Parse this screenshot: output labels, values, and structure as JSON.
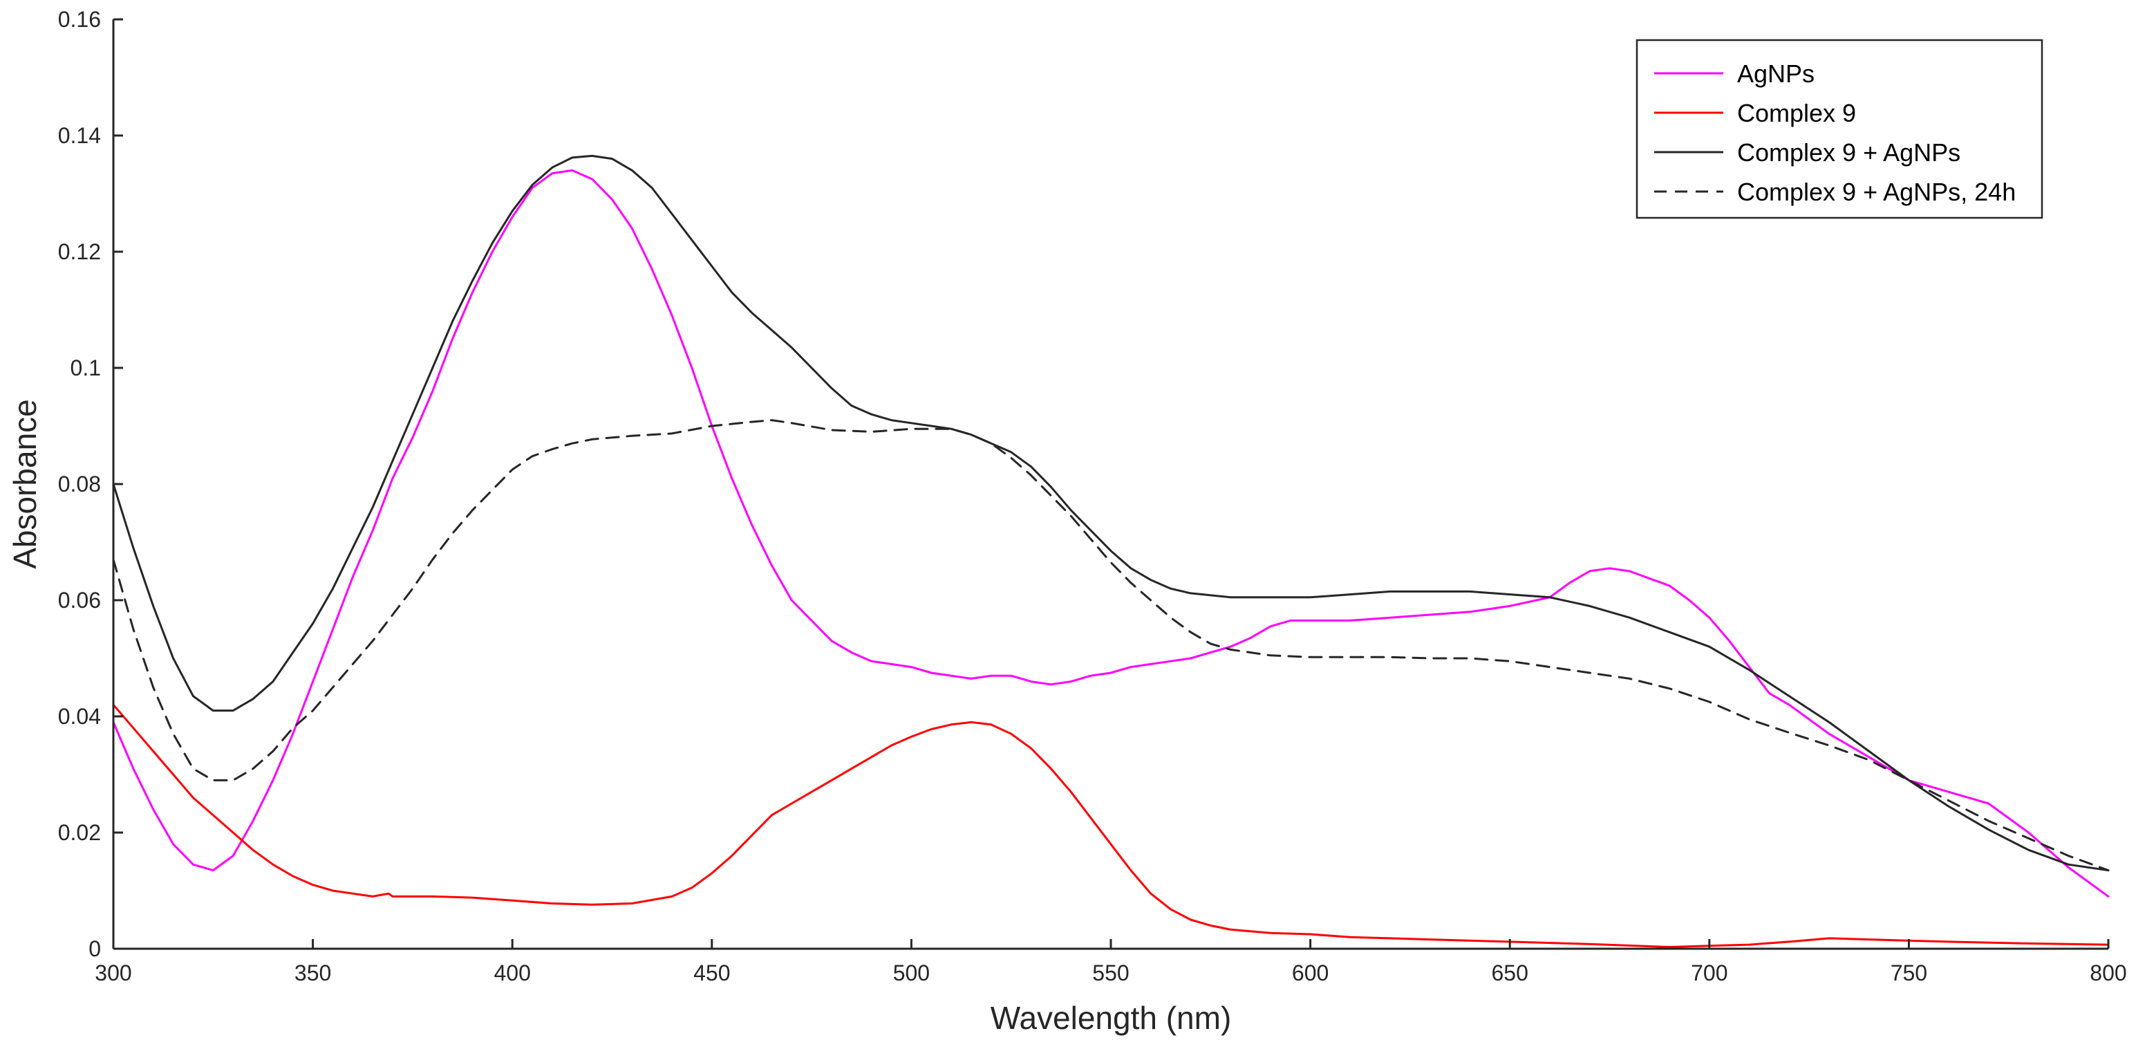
{
  "chart_data": {
    "type": "line",
    "title": "",
    "xlabel": "Wavelength (nm)",
    "ylabel": "Absorbance",
    "xlim": [
      300,
      800
    ],
    "ylim": [
      0,
      0.16
    ],
    "xticks": [
      300,
      350,
      400,
      450,
      500,
      550,
      600,
      650,
      700,
      750,
      800
    ],
    "xtick_labels": [
      "300",
      "350",
      "400",
      "450",
      "500",
      "550",
      "600",
      "650",
      "700",
      "750",
      "800"
    ],
    "yticks": [
      0,
      0.02,
      0.04,
      0.06,
      0.08,
      0.1,
      0.12,
      0.14,
      0.16
    ],
    "ytick_labels": [
      "0",
      "0.02",
      "0.04",
      "0.06",
      "0.08",
      "0.1",
      "0.12",
      "0.14",
      "0.16"
    ],
    "grid": false,
    "legend_position": "top-right",
    "series": [
      {
        "name": "AgNPs",
        "color": "#ff00ff",
        "style": "solid",
        "points": [
          [
            300,
            0.039
          ],
          [
            305,
            0.031
          ],
          [
            310,
            0.024
          ],
          [
            315,
            0.018
          ],
          [
            320,
            0.0145
          ],
          [
            325,
            0.0135
          ],
          [
            330,
            0.016
          ],
          [
            335,
            0.022
          ],
          [
            340,
            0.029
          ],
          [
            345,
            0.037
          ],
          [
            350,
            0.046
          ],
          [
            355,
            0.055
          ],
          [
            360,
            0.064
          ],
          [
            365,
            0.072
          ],
          [
            370,
            0.081
          ],
          [
            375,
            0.088
          ],
          [
            380,
            0.096
          ],
          [
            385,
            0.105
          ],
          [
            390,
            0.113
          ],
          [
            395,
            0.12
          ],
          [
            400,
            0.126
          ],
          [
            405,
            0.131
          ],
          [
            410,
            0.1335
          ],
          [
            415,
            0.134
          ],
          [
            420,
            0.1325
          ],
          [
            425,
            0.129
          ],
          [
            430,
            0.124
          ],
          [
            435,
            0.117
          ],
          [
            440,
            0.109
          ],
          [
            445,
            0.1
          ],
          [
            450,
            0.09
          ],
          [
            455,
            0.081
          ],
          [
            460,
            0.073
          ],
          [
            465,
            0.066
          ],
          [
            470,
            0.06
          ],
          [
            475,
            0.0565
          ],
          [
            480,
            0.053
          ],
          [
            485,
            0.051
          ],
          [
            490,
            0.0495
          ],
          [
            495,
            0.049
          ],
          [
            500,
            0.0485
          ],
          [
            505,
            0.0475
          ],
          [
            510,
            0.047
          ],
          [
            515,
            0.0465
          ],
          [
            520,
            0.047
          ],
          [
            525,
            0.047
          ],
          [
            530,
            0.046
          ],
          [
            535,
            0.0455
          ],
          [
            540,
            0.046
          ],
          [
            545,
            0.047
          ],
          [
            550,
            0.0475
          ],
          [
            555,
            0.0485
          ],
          [
            560,
            0.049
          ],
          [
            565,
            0.0495
          ],
          [
            570,
            0.05
          ],
          [
            575,
            0.051
          ],
          [
            580,
            0.052
          ],
          [
            585,
            0.0535
          ],
          [
            590,
            0.0555
          ],
          [
            595,
            0.0565
          ],
          [
            600,
            0.0565
          ],
          [
            610,
            0.0565
          ],
          [
            620,
            0.057
          ],
          [
            630,
            0.0575
          ],
          [
            640,
            0.058
          ],
          [
            650,
            0.059
          ],
          [
            660,
            0.0605
          ],
          [
            665,
            0.063
          ],
          [
            670,
            0.065
          ],
          [
            675,
            0.0655
          ],
          [
            680,
            0.065
          ],
          [
            690,
            0.0625
          ],
          [
            695,
            0.06
          ],
          [
            700,
            0.057
          ],
          [
            705,
            0.053
          ],
          [
            710,
            0.0485
          ],
          [
            715,
            0.044
          ],
          [
            720,
            0.042
          ],
          [
            730,
            0.037
          ],
          [
            740,
            0.033
          ],
          [
            750,
            0.029
          ],
          [
            760,
            0.027
          ],
          [
            765,
            0.026
          ],
          [
            770,
            0.025
          ],
          [
            780,
            0.02
          ],
          [
            790,
            0.014
          ],
          [
            800,
            0.009
          ]
        ]
      },
      {
        "name": "Complex 9",
        "color": "#ff0000",
        "style": "solid",
        "points": [
          [
            300,
            0.042
          ],
          [
            305,
            0.038
          ],
          [
            310,
            0.034
          ],
          [
            315,
            0.03
          ],
          [
            320,
            0.026
          ],
          [
            325,
            0.023
          ],
          [
            330,
            0.02
          ],
          [
            335,
            0.017
          ],
          [
            340,
            0.0145
          ],
          [
            345,
            0.0125
          ],
          [
            350,
            0.011
          ],
          [
            355,
            0.01
          ],
          [
            360,
            0.0095
          ],
          [
            365,
            0.009
          ],
          [
            369,
            0.0095
          ],
          [
            370,
            0.009
          ],
          [
            380,
            0.009
          ],
          [
            390,
            0.0088
          ],
          [
            400,
            0.0083
          ],
          [
            410,
            0.0078
          ],
          [
            420,
            0.0076
          ],
          [
            430,
            0.0078
          ],
          [
            440,
            0.009
          ],
          [
            445,
            0.0105
          ],
          [
            450,
            0.013
          ],
          [
            455,
            0.016
          ],
          [
            460,
            0.0195
          ],
          [
            465,
            0.023
          ],
          [
            470,
            0.025
          ],
          [
            475,
            0.027
          ],
          [
            480,
            0.029
          ],
          [
            485,
            0.031
          ],
          [
            490,
            0.033
          ],
          [
            495,
            0.035
          ],
          [
            500,
            0.0365
          ],
          [
            505,
            0.0378
          ],
          [
            510,
            0.0386
          ],
          [
            515,
            0.039
          ],
          [
            520,
            0.0386
          ],
          [
            525,
            0.037
          ],
          [
            530,
            0.0345
          ],
          [
            535,
            0.031
          ],
          [
            540,
            0.027
          ],
          [
            545,
            0.0225
          ],
          [
            550,
            0.018
          ],
          [
            555,
            0.0135
          ],
          [
            560,
            0.0095
          ],
          [
            565,
            0.0068
          ],
          [
            570,
            0.005
          ],
          [
            575,
            0.004
          ],
          [
            580,
            0.0033
          ],
          [
            590,
            0.0027
          ],
          [
            600,
            0.0025
          ],
          [
            610,
            0.002
          ],
          [
            630,
            0.0016
          ],
          [
            650,
            0.0012
          ],
          [
            670,
            0.0008
          ],
          [
            690,
            0.0003
          ],
          [
            700,
            0.0005
          ],
          [
            710,
            0.0007
          ],
          [
            720,
            0.0012
          ],
          [
            730,
            0.0018
          ],
          [
            740,
            0.0016
          ],
          [
            760,
            0.0012
          ],
          [
            780,
            0.0009
          ],
          [
            800,
            0.0007
          ]
        ]
      },
      {
        "name": "Complex 9 + AgNPs",
        "color": "#262626",
        "style": "solid",
        "points": [
          [
            300,
            0.08
          ],
          [
            305,
            0.069
          ],
          [
            310,
            0.059
          ],
          [
            315,
            0.05
          ],
          [
            320,
            0.0435
          ],
          [
            325,
            0.041
          ],
          [
            330,
            0.041
          ],
          [
            335,
            0.043
          ],
          [
            340,
            0.046
          ],
          [
            345,
            0.051
          ],
          [
            350,
            0.056
          ],
          [
            355,
            0.062
          ],
          [
            360,
            0.069
          ],
          [
            365,
            0.076
          ],
          [
            370,
            0.084
          ],
          [
            375,
            0.092
          ],
          [
            380,
            0.1
          ],
          [
            385,
            0.108
          ],
          [
            390,
            0.115
          ],
          [
            395,
            0.1215
          ],
          [
            400,
            0.127
          ],
          [
            405,
            0.1315
          ],
          [
            410,
            0.1345
          ],
          [
            415,
            0.1362
          ],
          [
            420,
            0.1365
          ],
          [
            425,
            0.136
          ],
          [
            430,
            0.134
          ],
          [
            435,
            0.131
          ],
          [
            440,
            0.1265
          ],
          [
            445,
            0.122
          ],
          [
            450,
            0.1175
          ],
          [
            455,
            0.113
          ],
          [
            460,
            0.1095
          ],
          [
            465,
            0.1065
          ],
          [
            470,
            0.1035
          ],
          [
            475,
            0.1
          ],
          [
            480,
            0.0965
          ],
          [
            485,
            0.0935
          ],
          [
            490,
            0.092
          ],
          [
            495,
            0.091
          ],
          [
            500,
            0.0905
          ],
          [
            505,
            0.09
          ],
          [
            510,
            0.0895
          ],
          [
            515,
            0.0885
          ],
          [
            520,
            0.087
          ],
          [
            525,
            0.0855
          ],
          [
            530,
            0.083
          ],
          [
            535,
            0.0795
          ],
          [
            540,
            0.0755
          ],
          [
            545,
            0.072
          ],
          [
            550,
            0.0685
          ],
          [
            555,
            0.0655
          ],
          [
            560,
            0.0635
          ],
          [
            565,
            0.062
          ],
          [
            570,
            0.0612
          ],
          [
            580,
            0.0605
          ],
          [
            590,
            0.0605
          ],
          [
            600,
            0.0605
          ],
          [
            610,
            0.061
          ],
          [
            620,
            0.0615
          ],
          [
            630,
            0.0615
          ],
          [
            640,
            0.0615
          ],
          [
            650,
            0.061
          ],
          [
            660,
            0.0605
          ],
          [
            670,
            0.059
          ],
          [
            680,
            0.057
          ],
          [
            690,
            0.0545
          ],
          [
            700,
            0.052
          ],
          [
            710,
            0.048
          ],
          [
            720,
            0.0435
          ],
          [
            730,
            0.039
          ],
          [
            740,
            0.034
          ],
          [
            750,
            0.029
          ],
          [
            760,
            0.0245
          ],
          [
            770,
            0.0205
          ],
          [
            780,
            0.017
          ],
          [
            790,
            0.0145
          ],
          [
            800,
            0.0135
          ]
        ]
      },
      {
        "name": "Complex 9 + AgNPs, 24h",
        "color": "#262626",
        "style": "dashed",
        "points": [
          [
            300,
            0.067
          ],
          [
            305,
            0.055
          ],
          [
            310,
            0.045
          ],
          [
            315,
            0.037
          ],
          [
            320,
            0.031
          ],
          [
            325,
            0.029
          ],
          [
            330,
            0.029
          ],
          [
            335,
            0.031
          ],
          [
            340,
            0.034
          ],
          [
            345,
            0.038
          ],
          [
            350,
            0.041
          ],
          [
            355,
            0.045
          ],
          [
            360,
            0.049
          ],
          [
            365,
            0.053
          ],
          [
            370,
            0.0575
          ],
          [
            375,
            0.062
          ],
          [
            380,
            0.067
          ],
          [
            385,
            0.0715
          ],
          [
            390,
            0.0755
          ],
          [
            395,
            0.079
          ],
          [
            400,
            0.0825
          ],
          [
            405,
            0.0848
          ],
          [
            410,
            0.086
          ],
          [
            415,
            0.087
          ],
          [
            420,
            0.0877
          ],
          [
            430,
            0.0883
          ],
          [
            440,
            0.0887
          ],
          [
            450,
            0.09
          ],
          [
            460,
            0.0907
          ],
          [
            465,
            0.091
          ],
          [
            470,
            0.0905
          ],
          [
            480,
            0.0893
          ],
          [
            490,
            0.089
          ],
          [
            500,
            0.0895
          ],
          [
            510,
            0.0895
          ],
          [
            515,
            0.0885
          ],
          [
            520,
            0.087
          ],
          [
            525,
            0.0845
          ],
          [
            530,
            0.0815
          ],
          [
            535,
            0.078
          ],
          [
            540,
            0.0745
          ],
          [
            545,
            0.0705
          ],
          [
            550,
            0.0665
          ],
          [
            555,
            0.063
          ],
          [
            560,
            0.06
          ],
          [
            565,
            0.057
          ],
          [
            570,
            0.0545
          ],
          [
            575,
            0.0525
          ],
          [
            580,
            0.0515
          ],
          [
            590,
            0.0505
          ],
          [
            600,
            0.0502
          ],
          [
            610,
            0.0502
          ],
          [
            620,
            0.0502
          ],
          [
            630,
            0.05
          ],
          [
            640,
            0.05
          ],
          [
            650,
            0.0495
          ],
          [
            660,
            0.0485
          ],
          [
            670,
            0.0475
          ],
          [
            680,
            0.0465
          ],
          [
            690,
            0.0448
          ],
          [
            700,
            0.0425
          ],
          [
            710,
            0.0395
          ],
          [
            720,
            0.0372
          ],
          [
            730,
            0.035
          ],
          [
            740,
            0.0325
          ],
          [
            750,
            0.029
          ],
          [
            760,
            0.0255
          ],
          [
            770,
            0.022
          ],
          [
            780,
            0.019
          ],
          [
            790,
            0.016
          ],
          [
            800,
            0.0135
          ]
        ]
      }
    ]
  }
}
